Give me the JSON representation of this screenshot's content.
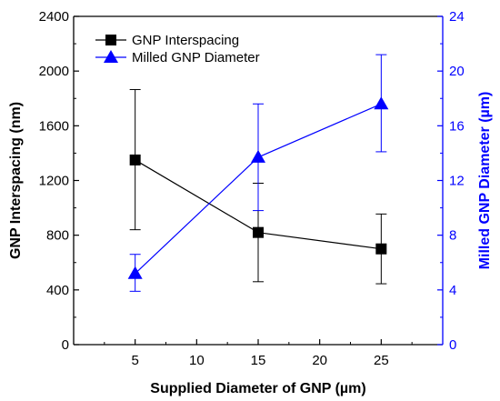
{
  "chart_data": {
    "type": "line",
    "x": [
      5,
      15,
      25
    ],
    "xlabel": "Supplied Diameter of GNP (µm)",
    "xlim": [
      0,
      30
    ],
    "xticks": [
      5,
      10,
      15,
      20,
      25
    ],
    "ylabel": "GNP Interspacing (nm)",
    "ylim": [
      0,
      2400
    ],
    "yticks": [
      0,
      400,
      800,
      1200,
      1600,
      2000,
      2400
    ],
    "y2label": "Milled GNP Diameter (µm)",
    "y2lim": [
      0,
      24
    ],
    "y2ticks": [
      0,
      4,
      8,
      12,
      16,
      20,
      24
    ],
    "legend_position": "top-left",
    "grid": false,
    "series": [
      {
        "name": "GNP Interspacing",
        "axis": "left",
        "marker": "square",
        "color": "#000000",
        "values": [
          1350,
          820,
          700
        ],
        "error_low": [
          840,
          460,
          445
        ],
        "error_high": [
          1865,
          1180,
          955
        ]
      },
      {
        "name": "Milled GNP Diameter",
        "axis": "right",
        "marker": "triangle",
        "color": "#0000ff",
        "values": [
          5.2,
          13.7,
          17.6
        ],
        "error_low": [
          3.9,
          9.8,
          14.1
        ],
        "error_high": [
          6.6,
          17.6,
          21.2
        ]
      }
    ]
  }
}
